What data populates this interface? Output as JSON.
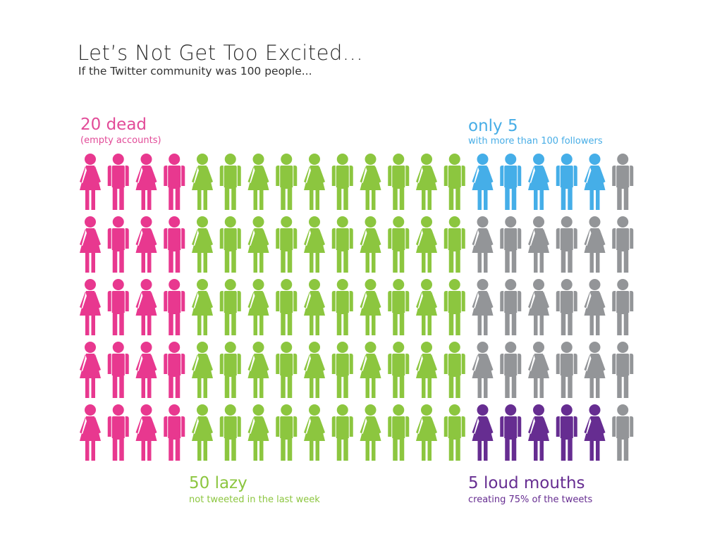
{
  "chart_data": {
    "type": "pictograph",
    "title": "Let’s Not Get Too Excited...",
    "subtitle": "If the Twitter community was 100 people...",
    "total": 100,
    "rows": 5,
    "columns": 20,
    "groups": [
      {
        "key": "dead",
        "count": 20,
        "label": "20 dead",
        "sublabel": "(empty accounts)",
        "color": "#e8388f"
      },
      {
        "key": "lazy",
        "count": 50,
        "label": "50 lazy",
        "sublabel": "not tweeted in the last week",
        "color": "#8cc63f"
      },
      {
        "key": "followers",
        "count": 5,
        "label": "only 5",
        "sublabel": "with more than 100 followers",
        "color": "#45aee8"
      },
      {
        "key": "loud",
        "count": 5,
        "label": "5 loud mouths",
        "sublabel": "creating 75% of the tweets",
        "color": "#662d91"
      },
      {
        "key": "other",
        "count": 20,
        "color": "#939598"
      }
    ]
  }
}
